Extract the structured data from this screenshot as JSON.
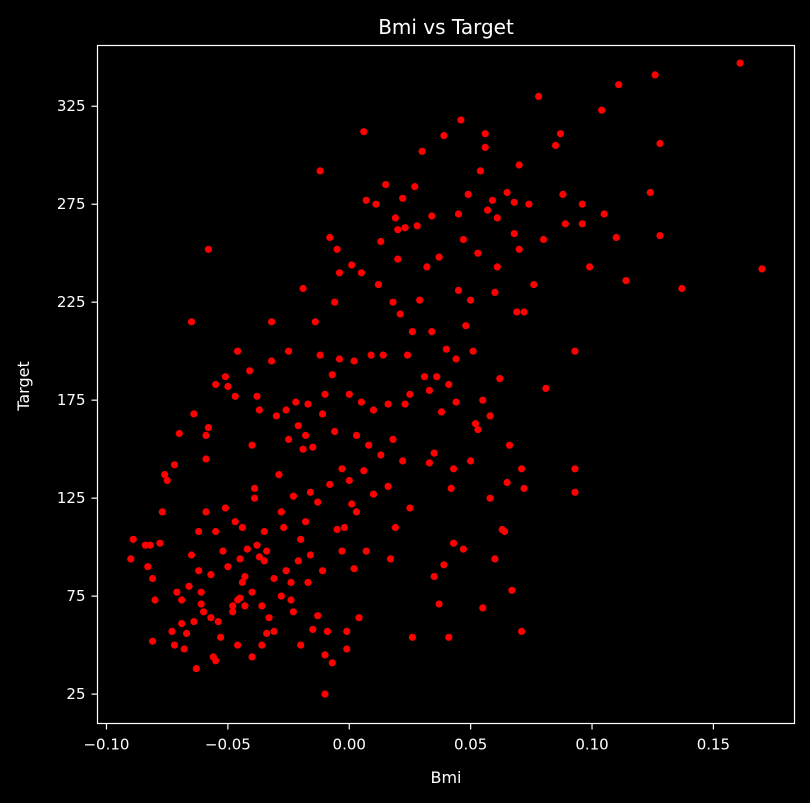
{
  "chart_data": {
    "type": "scatter",
    "title": "Bmi vs Target",
    "xlabel": "Bmi",
    "ylabel": "Target",
    "xlim": [
      -0.1037,
      0.1834
    ],
    "ylim": [
      10,
      356
    ],
    "xticks": [
      -0.1,
      -0.05,
      0.0,
      0.05,
      0.1,
      0.15
    ],
    "xtick_labels": [
      "−0.10",
      "−0.05",
      "0.00",
      "0.05",
      "0.10",
      "0.15"
    ],
    "yticks": [
      25,
      75,
      125,
      175,
      225,
      275,
      325
    ],
    "ytick_labels": [
      "25",
      "75",
      "125",
      "175",
      "225",
      "275",
      "325"
    ],
    "grid": false,
    "background_color": "#000000",
    "text_color": "#ffffff",
    "point_color": "#ff0000",
    "points": [
      [
        -0.09,
        94
      ],
      [
        -0.089,
        104
      ],
      [
        -0.084,
        101
      ],
      [
        -0.081,
        84
      ],
      [
        -0.082,
        101
      ],
      [
        -0.08,
        73
      ],
      [
        -0.083,
        90
      ],
      [
        -0.081,
        52
      ],
      [
        -0.078,
        102
      ],
      [
        -0.077,
        118
      ],
      [
        -0.076,
        137
      ],
      [
        -0.075,
        134
      ],
      [
        -0.072,
        142
      ],
      [
        -0.071,
        77
      ],
      [
        -0.073,
        57
      ],
      [
        -0.072,
        50
      ],
      [
        -0.07,
        158
      ],
      [
        -0.069,
        73
      ],
      [
        -0.068,
        48
      ],
      [
        -0.069,
        61
      ],
      [
        -0.067,
        56
      ],
      [
        -0.066,
        80
      ],
      [
        -0.065,
        96
      ],
      [
        -0.064,
        168
      ],
      [
        -0.064,
        62
      ],
      [
        -0.063,
        38
      ],
      [
        -0.065,
        215
      ],
      [
        -0.062,
        108
      ],
      [
        -0.062,
        88
      ],
      [
        -0.061,
        71
      ],
      [
        -0.061,
        77
      ],
      [
        -0.06,
        67
      ],
      [
        -0.059,
        118
      ],
      [
        -0.059,
        145
      ],
      [
        -0.059,
        157
      ],
      [
        -0.058,
        161
      ],
      [
        -0.058,
        252
      ],
      [
        -0.057,
        64
      ],
      [
        -0.057,
        86
      ],
      [
        -0.056,
        44
      ],
      [
        -0.055,
        108
      ],
      [
        -0.055,
        183
      ],
      [
        -0.055,
        42
      ],
      [
        -0.054,
        62
      ],
      [
        -0.053,
        54
      ],
      [
        -0.052,
        98
      ],
      [
        -0.051,
        120
      ],
      [
        -0.051,
        187
      ],
      [
        -0.05,
        182
      ],
      [
        -0.05,
        90
      ],
      [
        -0.048,
        70
      ],
      [
        -0.048,
        67
      ],
      [
        -0.047,
        113
      ],
      [
        -0.047,
        177
      ],
      [
        -0.046,
        73
      ],
      [
        -0.046,
        200
      ],
      [
        -0.046,
        50
      ],
      [
        -0.045,
        74
      ],
      [
        -0.045,
        94
      ],
      [
        -0.044,
        82
      ],
      [
        -0.044,
        110
      ],
      [
        -0.043,
        70
      ],
      [
        -0.043,
        85
      ],
      [
        -0.042,
        99
      ],
      [
        -0.041,
        190
      ],
      [
        -0.04,
        152
      ],
      [
        -0.04,
        77
      ],
      [
        -0.04,
        44
      ],
      [
        -0.039,
        130
      ],
      [
        -0.039,
        125
      ],
      [
        -0.038,
        177
      ],
      [
        -0.038,
        101
      ],
      [
        -0.037,
        95
      ],
      [
        -0.037,
        170
      ],
      [
        -0.036,
        70
      ],
      [
        -0.036,
        50
      ],
      [
        -0.035,
        108
      ],
      [
        -0.035,
        93
      ],
      [
        -0.034,
        56
      ],
      [
        -0.034,
        98
      ],
      [
        -0.033,
        64
      ],
      [
        -0.032,
        215
      ],
      [
        -0.032,
        195
      ],
      [
        -0.031,
        84
      ],
      [
        -0.031,
        57
      ],
      [
        -0.03,
        167
      ],
      [
        -0.029,
        137
      ],
      [
        -0.028,
        75
      ],
      [
        -0.028,
        118
      ],
      [
        -0.027,
        110
      ],
      [
        -0.026,
        170
      ],
      [
        -0.026,
        88
      ],
      [
        -0.025,
        200
      ],
      [
        -0.025,
        155
      ],
      [
        -0.024,
        73
      ],
      [
        -0.024,
        82
      ],
      [
        -0.023,
        67
      ],
      [
        -0.023,
        126
      ],
      [
        -0.022,
        174
      ],
      [
        -0.021,
        93
      ],
      [
        -0.021,
        162
      ],
      [
        -0.02,
        50
      ],
      [
        -0.02,
        104
      ],
      [
        -0.019,
        232
      ],
      [
        -0.019,
        150
      ],
      [
        -0.018,
        113
      ],
      [
        -0.018,
        157
      ],
      [
        -0.017,
        82
      ],
      [
        -0.017,
        173
      ],
      [
        -0.016,
        128
      ],
      [
        -0.016,
        96
      ],
      [
        -0.015,
        58
      ],
      [
        -0.015,
        151
      ],
      [
        -0.014,
        215
      ],
      [
        -0.013,
        123
      ],
      [
        -0.013,
        65
      ],
      [
        -0.012,
        292
      ],
      [
        -0.012,
        198
      ],
      [
        -0.011,
        88
      ],
      [
        -0.011,
        168
      ],
      [
        -0.01,
        178
      ],
      [
        -0.01,
        25
      ],
      [
        -0.01,
        45
      ],
      [
        -0.009,
        57
      ],
      [
        -0.008,
        132
      ],
      [
        -0.008,
        258
      ],
      [
        -0.007,
        188
      ],
      [
        -0.007,
        41
      ],
      [
        -0.006,
        225
      ],
      [
        -0.006,
        159
      ],
      [
        -0.005,
        109
      ],
      [
        -0.005,
        252
      ],
      [
        -0.004,
        240
      ],
      [
        -0.004,
        196
      ],
      [
        -0.003,
        98
      ],
      [
        -0.003,
        140
      ],
      [
        -0.002,
        110
      ],
      [
        -0.001,
        57
      ],
      [
        -0.001,
        48
      ],
      [
        0.0,
        178
      ],
      [
        0.0,
        134
      ],
      [
        0.001,
        244
      ],
      [
        0.001,
        122
      ],
      [
        0.002,
        195
      ],
      [
        0.002,
        89
      ],
      [
        0.003,
        157
      ],
      [
        0.003,
        118
      ],
      [
        0.004,
        64
      ],
      [
        0.005,
        240
      ],
      [
        0.005,
        174
      ],
      [
        0.006,
        139
      ],
      [
        0.006,
        312
      ],
      [
        0.007,
        98
      ],
      [
        0.007,
        277
      ],
      [
        0.008,
        152
      ],
      [
        0.009,
        198
      ],
      [
        0.01,
        170
      ],
      [
        0.01,
        127
      ],
      [
        0.011,
        275
      ],
      [
        0.012,
        234
      ],
      [
        0.013,
        147
      ],
      [
        0.013,
        256
      ],
      [
        0.014,
        198
      ],
      [
        0.015,
        285
      ],
      [
        0.016,
        173
      ],
      [
        0.016,
        131
      ],
      [
        0.017,
        94
      ],
      [
        0.018,
        225
      ],
      [
        0.018,
        155
      ],
      [
        0.019,
        268
      ],
      [
        0.019,
        110
      ],
      [
        0.02,
        262
      ],
      [
        0.02,
        247
      ],
      [
        0.021,
        219
      ],
      [
        0.022,
        278
      ],
      [
        0.022,
        144
      ],
      [
        0.023,
        173
      ],
      [
        0.023,
        263
      ],
      [
        0.024,
        198
      ],
      [
        0.025,
        178
      ],
      [
        0.025,
        120
      ],
      [
        0.026,
        54
      ],
      [
        0.026,
        210
      ],
      [
        0.027,
        284
      ],
      [
        0.028,
        264
      ],
      [
        0.029,
        226
      ],
      [
        0.03,
        302
      ],
      [
        0.031,
        187
      ],
      [
        0.032,
        243
      ],
      [
        0.033,
        180
      ],
      [
        0.033,
        143
      ],
      [
        0.034,
        210
      ],
      [
        0.034,
        269
      ],
      [
        0.035,
        85
      ],
      [
        0.035,
        148
      ],
      [
        0.036,
        187
      ],
      [
        0.037,
        71
      ],
      [
        0.037,
        248
      ],
      [
        0.038,
        169
      ],
      [
        0.039,
        91
      ],
      [
        0.039,
        310
      ],
      [
        0.04,
        201
      ],
      [
        0.041,
        183
      ],
      [
        0.041,
        54
      ],
      [
        0.042,
        130
      ],
      [
        0.043,
        102
      ],
      [
        0.043,
        140
      ],
      [
        0.044,
        196
      ],
      [
        0.044,
        174
      ],
      [
        0.045,
        270
      ],
      [
        0.045,
        231
      ],
      [
        0.046,
        318
      ],
      [
        0.047,
        257
      ],
      [
        0.047,
        99
      ],
      [
        0.048,
        213
      ],
      [
        0.049,
        280
      ],
      [
        0.05,
        144
      ],
      [
        0.05,
        226
      ],
      [
        0.051,
        200
      ],
      [
        0.052,
        163
      ],
      [
        0.053,
        250
      ],
      [
        0.053,
        160
      ],
      [
        0.054,
        292
      ],
      [
        0.055,
        175
      ],
      [
        0.055,
        69
      ],
      [
        0.056,
        311
      ],
      [
        0.056,
        304
      ],
      [
        0.057,
        272
      ],
      [
        0.058,
        125
      ],
      [
        0.058,
        167
      ],
      [
        0.059,
        277
      ],
      [
        0.06,
        230
      ],
      [
        0.06,
        94
      ],
      [
        0.061,
        243
      ],
      [
        0.061,
        268
      ],
      [
        0.062,
        186
      ],
      [
        0.063,
        109
      ],
      [
        0.064,
        108
      ],
      [
        0.065,
        133
      ],
      [
        0.065,
        281
      ],
      [
        0.066,
        152
      ],
      [
        0.067,
        78
      ],
      [
        0.068,
        260
      ],
      [
        0.068,
        276
      ],
      [
        0.069,
        220
      ],
      [
        0.07,
        252
      ],
      [
        0.07,
        295
      ],
      [
        0.071,
        140
      ],
      [
        0.071,
        57
      ],
      [
        0.072,
        220
      ],
      [
        0.072,
        130
      ],
      [
        0.074,
        275
      ],
      [
        0.076,
        234
      ],
      [
        0.078,
        330
      ],
      [
        0.08,
        257
      ],
      [
        0.081,
        181
      ],
      [
        0.085,
        305
      ],
      [
        0.087,
        311
      ],
      [
        0.088,
        280
      ],
      [
        0.089,
        265
      ],
      [
        0.093,
        200
      ],
      [
        0.093,
        140
      ],
      [
        0.093,
        128
      ],
      [
        0.096,
        275
      ],
      [
        0.096,
        265
      ],
      [
        0.099,
        243
      ],
      [
        0.104,
        323
      ],
      [
        0.105,
        270
      ],
      [
        0.11,
        258
      ],
      [
        0.111,
        336
      ],
      [
        0.114,
        236
      ],
      [
        0.124,
        281
      ],
      [
        0.126,
        341
      ],
      [
        0.128,
        306
      ],
      [
        0.128,
        259
      ],
      [
        0.137,
        232
      ],
      [
        0.161,
        347
      ],
      [
        0.17,
        242
      ]
    ]
  }
}
